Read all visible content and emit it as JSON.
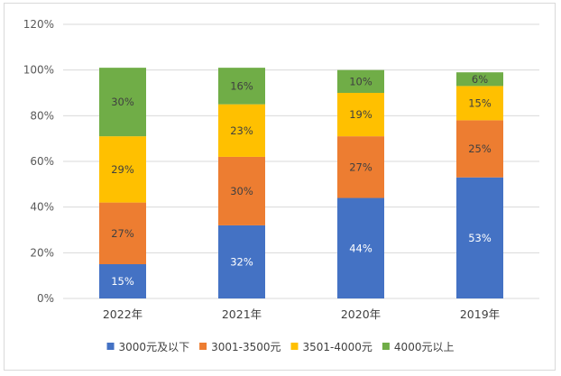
{
  "chart_data": {
    "type": "bar",
    "stacked": true,
    "categories": [
      "2022年",
      "2021年",
      "2020年",
      "2019年"
    ],
    "series": [
      {
        "name": "3000元及以下",
        "values": [
          15,
          32,
          44,
          53
        ],
        "labels": [
          "15%",
          "32%",
          "44%",
          "53%"
        ],
        "color": "#4472C4",
        "label_color": "#ffffff"
      },
      {
        "name": "3001-3500元",
        "values": [
          27,
          30,
          27,
          25
        ],
        "labels": [
          "27%",
          "30%",
          "27%",
          "25%"
        ],
        "color": "#ED7D31",
        "label_color": "#404040"
      },
      {
        "name": "3501-4000元",
        "values": [
          29,
          23,
          19,
          15
        ],
        "labels": [
          "29%",
          "23%",
          "19%",
          "15%"
        ],
        "color": "#FFC000",
        "label_color": "#404040"
      },
      {
        "name": "4000元以上",
        "values": [
          30,
          16,
          10,
          6
        ],
        "labels": [
          "30%",
          "16%",
          "10%",
          "6%"
        ],
        "color": "#70AD47",
        "label_color": "#404040"
      }
    ],
    "y_ticks": [
      "0%",
      "20%",
      "40%",
      "60%",
      "80%",
      "100%",
      "120%"
    ],
    "ylim": [
      0,
      120
    ],
    "grid": true,
    "legend_position": "bottom",
    "gridline_color": "#d9d9d9"
  }
}
